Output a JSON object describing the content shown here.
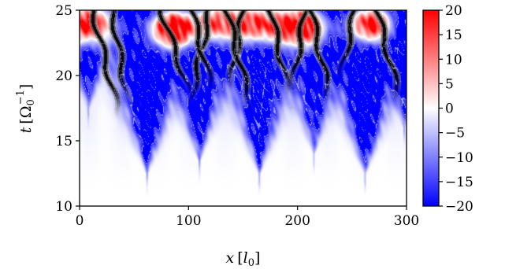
{
  "chart_data": {
    "type": "heatmap",
    "title": "",
    "xlabel": "x [l0]",
    "ylabel": "t [Ω0^-1]",
    "xlabel_parts": {
      "var": "x",
      "open": "[",
      "unit": "l",
      "sub": "0",
      "close": "]"
    },
    "ylabel_parts": {
      "var": "t",
      "open": "[",
      "unit": "Ω",
      "sub": "0",
      "sup": "−1",
      "close": "]"
    },
    "xlim": [
      0,
      300
    ],
    "ylim": [
      10,
      25
    ],
    "x_ticks": [
      0,
      100,
      200,
      300
    ],
    "y_ticks": [
      10,
      15,
      20,
      25
    ],
    "x_tick_labels": [
      "0",
      "100",
      "200",
      "300"
    ],
    "y_tick_labels": [
      "10",
      "15",
      "20",
      "25"
    ],
    "colorbar": {
      "range": [
        -20,
        20
      ],
      "ticks": [
        20,
        15,
        10,
        5,
        0,
        -5,
        -10,
        -15,
        -20
      ],
      "tick_labels": [
        "20",
        "15",
        "10",
        "5",
        "0",
        "−5",
        "−10",
        "−15",
        "−20"
      ],
      "colormap": "bwr",
      "colors": {
        "low": "#0000ff",
        "mid": "#ffffff",
        "high": "#ff0000"
      }
    },
    "contour_colors": [
      "#000000",
      "#555555",
      "#aaaaaa",
      "#ffffff"
    ],
    "structures": [
      {
        "x": 8,
        "t_start": 17.5,
        "amp": 1.0
      },
      {
        "x": 62,
        "t_start": 12.5,
        "amp": 1.25
      },
      {
        "x": 110,
        "t_start": 13.5,
        "amp": 1.1
      },
      {
        "x": 165,
        "t_start": 12.5,
        "amp": 1.2
      },
      {
        "x": 215,
        "t_start": 14.0,
        "amp": 0.9
      },
      {
        "x": 262,
        "t_start": 12.5,
        "amp": 1.25
      },
      {
        "x": 298,
        "t_start": 16.0,
        "amp": 0.9
      }
    ],
    "positive_regions": [
      {
        "x": 8,
        "t": 24.0,
        "amp": 1.0
      },
      {
        "x": 85,
        "t": 23.6,
        "amp": 1.3
      },
      {
        "x": 128,
        "t": 24.2,
        "amp": 0.9
      },
      {
        "x": 165,
        "t": 24.0,
        "amp": 0.9
      },
      {
        "x": 205,
        "t": 23.8,
        "amp": 1.2
      },
      {
        "x": 268,
        "t": 24.0,
        "amp": 1.2
      }
    ],
    "filaments": [
      {
        "x0": 27,
        "slope": -3.0,
        "t_start": 18.0
      },
      {
        "x0": 40,
        "slope": -2.0,
        "t_start": 19.0
      },
      {
        "x0": 95,
        "slope": -4.0,
        "t_start": 19.5
      },
      {
        "x0": 107,
        "slope": 2.5,
        "t_start": 19.0
      },
      {
        "x0": 118,
        "slope": -3.0,
        "t_start": 20.0
      },
      {
        "x0": 140,
        "slope": 2.0,
        "t_start": 20.0
      },
      {
        "x0": 150,
        "slope": -3.0,
        "t_start": 18.5
      },
      {
        "x0": 188,
        "slope": -2.5,
        "t_start": 19.5
      },
      {
        "x0": 197,
        "slope": 2.0,
        "t_start": 20.0
      },
      {
        "x0": 225,
        "slope": -2.5,
        "t_start": 19.0
      },
      {
        "x0": 240,
        "slope": 2.5,
        "t_start": 21.0
      },
      {
        "x0": 288,
        "slope": -3.0,
        "t_start": 19.0
      }
    ]
  }
}
